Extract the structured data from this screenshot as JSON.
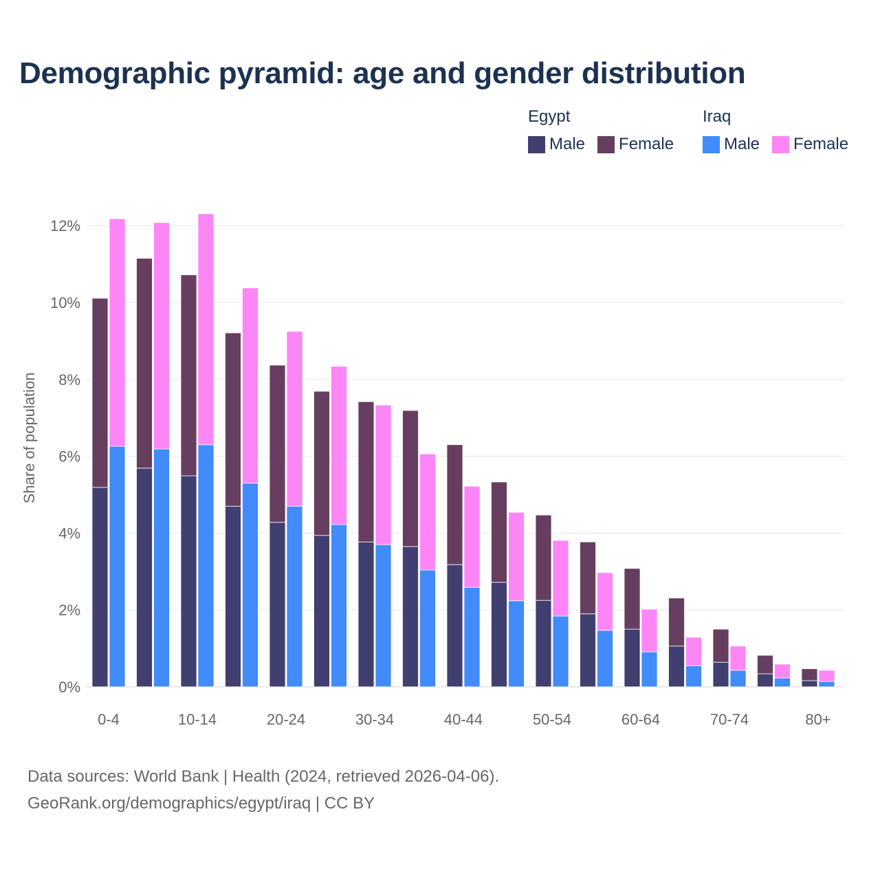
{
  "chart_data": {
    "type": "bar",
    "title": "Demographic pyramid: age and gender distribution",
    "ylabel": "Share of population",
    "xlabel": "",
    "ylim": [
      0,
      12.5
    ],
    "yticks": [
      "0%",
      "2%",
      "4%",
      "6%",
      "8%",
      "10%",
      "12%"
    ],
    "ytick_values": [
      0,
      2,
      4,
      6,
      8,
      10,
      12
    ],
    "grid": true,
    "legend_position": "top-right",
    "stacked": true,
    "categories": [
      "0-4",
      "5-9",
      "10-14",
      "15-19",
      "20-24",
      "25-29",
      "30-34",
      "35-39",
      "40-44",
      "45-49",
      "50-54",
      "55-59",
      "60-64",
      "65-69",
      "70-74",
      "75-79",
      "80+"
    ],
    "xtick_labels_shown": [
      "0-4",
      "10-14",
      "20-24",
      "30-34",
      "40-44",
      "50-54",
      "60-64",
      "70-74",
      "80+"
    ],
    "groups": [
      {
        "name": "Egypt",
        "series": [
          {
            "name": "Male",
            "color": "#413f6f",
            "values": [
              5.19,
              5.69,
              5.49,
              4.7,
              4.28,
              3.94,
              3.77,
              3.65,
              3.18,
              2.72,
              2.25,
              1.9,
              1.5,
              1.06,
              0.64,
              0.34,
              0.16
            ]
          },
          {
            "name": "Female",
            "color": "#663e5f",
            "values": [
              4.92,
              5.46,
              5.23,
              4.51,
              4.09,
              3.75,
              3.65,
              3.54,
              3.12,
              2.61,
              2.22,
              1.87,
              1.58,
              1.25,
              0.86,
              0.48,
              0.31
            ]
          }
        ]
      },
      {
        "name": "Iraq",
        "series": [
          {
            "name": "Male",
            "color": "#418bfa",
            "values": [
              6.26,
              6.19,
              6.3,
              5.3,
              4.7,
              4.22,
              3.7,
              3.04,
              2.59,
              2.24,
              1.84,
              1.47,
              0.91,
              0.55,
              0.43,
              0.23,
              0.14
            ]
          },
          {
            "name": "Female",
            "color": "#fd86f6",
            "values": [
              5.92,
              5.89,
              6.01,
              5.08,
              4.55,
              4.12,
              3.63,
              3.02,
              2.63,
              2.3,
              1.97,
              1.5,
              1.11,
              0.74,
              0.63,
              0.36,
              0.29
            ]
          }
        ]
      }
    ]
  },
  "source_line1": "Data sources: World Bank | Health (2024, retrieved 2026-04-06).",
  "source_line2": "GeoRank.org/demographics/egypt/iraq | CC BY"
}
